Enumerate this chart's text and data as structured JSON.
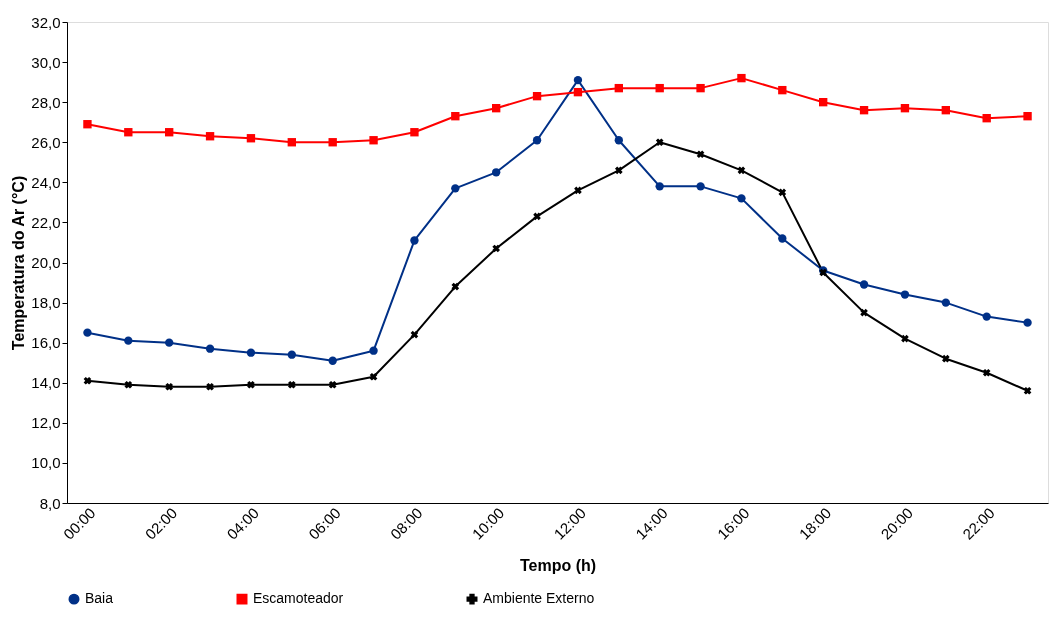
{
  "chart_data": {
    "type": "line",
    "xlabel": "Tempo (h)",
    "ylabel": "Temperatura do Ar (°C)",
    "categories": [
      "00:00",
      null,
      "02:00",
      null,
      "04:00",
      null,
      "06:00",
      null,
      "08:00",
      null,
      "10:00",
      null,
      "12:00",
      null,
      "14:00",
      null,
      "16:00",
      null,
      "18:00",
      null,
      "20:00",
      null,
      "22:00",
      null
    ],
    "series": [
      {
        "name": "Baia",
        "color": "#003087",
        "marker": "circle",
        "values": [
          16.5,
          16.1,
          16.0,
          15.7,
          15.5,
          15.4,
          15.1,
          15.6,
          21.1,
          23.7,
          24.5,
          26.1,
          29.1,
          26.1,
          23.8,
          23.8,
          23.2,
          21.2,
          19.6,
          18.9,
          18.4,
          18.0,
          17.3,
          17.0
        ]
      },
      {
        "name": "Escamoteador",
        "color": "#ff0000",
        "marker": "square",
        "values": [
          26.9,
          26.5,
          26.5,
          26.3,
          26.2,
          26.0,
          26.0,
          26.1,
          26.5,
          27.3,
          27.7,
          28.3,
          28.5,
          28.7,
          28.7,
          28.7,
          29.2,
          28.6,
          28.0,
          27.6,
          27.7,
          27.6,
          27.2,
          27.3
        ]
      },
      {
        "name": "Ambiente Externo",
        "color": "#000000",
        "marker": "cross",
        "values": [
          14.1,
          13.9,
          13.8,
          13.8,
          13.9,
          13.9,
          13.9,
          14.3,
          16.4,
          18.8,
          20.7,
          22.3,
          23.6,
          24.6,
          26.0,
          25.4,
          24.6,
          23.5,
          19.5,
          17.5,
          16.2,
          15.2,
          14.5,
          13.6
        ]
      }
    ],
    "ylim": [
      8,
      32
    ],
    "yticks": [
      {
        "value": 8,
        "label": "8,0"
      },
      {
        "value": 10,
        "label": "10,0"
      },
      {
        "value": 12,
        "label": "12,0"
      },
      {
        "value": 14,
        "label": "14,0"
      },
      {
        "value": 16,
        "label": "16,0"
      },
      {
        "value": 18,
        "label": "18,0"
      },
      {
        "value": 20,
        "label": "20,0"
      },
      {
        "value": 22,
        "label": "22,0"
      },
      {
        "value": 24,
        "label": "24,0"
      },
      {
        "value": 26,
        "label": "26,0"
      },
      {
        "value": 28,
        "label": "28,0"
      },
      {
        "value": 30,
        "label": "30,0"
      },
      {
        "value": 32,
        "label": "32,0"
      }
    ],
    "grid": false,
    "legend": "bottom",
    "line_style": "solid"
  }
}
